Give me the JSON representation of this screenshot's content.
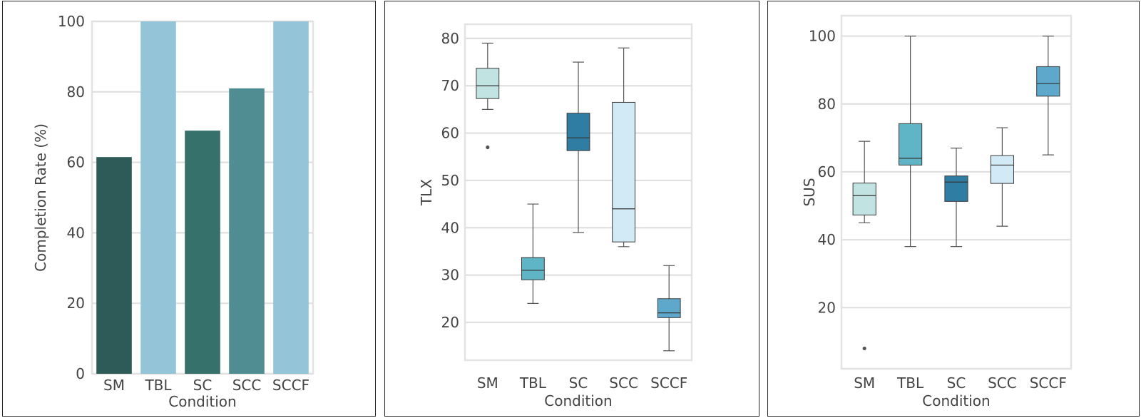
{
  "chart_data": [
    {
      "type": "bar",
      "xlabel": "Condition",
      "ylabel": "Completion Rate (%)",
      "ylim": [
        0,
        100
      ],
      "yticks": [
        0,
        20,
        40,
        60,
        80,
        100
      ],
      "grid": true,
      "categories": [
        "SM",
        "TBL",
        "SC",
        "SCC",
        "SCCF"
      ],
      "values": [
        61.5,
        100,
        69,
        81,
        100
      ],
      "colors": [
        "#2e5b57",
        "#93c4d8",
        "#37716c",
        "#4f8d92",
        "#93c4d8"
      ]
    },
    {
      "type": "box",
      "xlabel": "Condition",
      "ylabel": "TLX",
      "ylim": [
        12,
        83
      ],
      "yticks": [
        20,
        30,
        40,
        50,
        60,
        70,
        80
      ],
      "grid": true,
      "categories": [
        "SM",
        "TBL",
        "SC",
        "SCC",
        "SCCF"
      ],
      "boxes": [
        {
          "whislo": 65,
          "q1": 67.3,
          "med": 70,
          "q3": 73.7,
          "whishi": 79,
          "fliers": [
            57
          ],
          "color": "#c1e4e3"
        },
        {
          "whislo": 24,
          "q1": 29,
          "med": 31,
          "q3": 33.7,
          "whishi": 45,
          "fliers": [],
          "color": "#5fb4c6"
        },
        {
          "whislo": 39,
          "q1": 56.3,
          "med": 59,
          "q3": 64.2,
          "whishi": 75,
          "fliers": [],
          "color": "#2f7da3"
        },
        {
          "whislo": 36,
          "q1": 37,
          "med": 44,
          "q3": 66.5,
          "whishi": 78,
          "fliers": [],
          "color": "#d2eaf5"
        },
        {
          "whislo": 14,
          "q1": 21,
          "med": 22,
          "q3": 25,
          "whishi": 32,
          "fliers": [],
          "color": "#5ea8cc"
        }
      ]
    },
    {
      "type": "box",
      "xlabel": "Condition",
      "ylabel": "SUS",
      "ylim": [
        2,
        106
      ],
      "yticks": [
        20,
        40,
        60,
        80,
        100
      ],
      "grid": true,
      "categories": [
        "SM",
        "TBL",
        "SC",
        "SCC",
        "SCCF"
      ],
      "boxes": [
        {
          "whislo": 45,
          "q1": 47.3,
          "med": 53,
          "q3": 56.7,
          "whishi": 69,
          "fliers": [
            8
          ],
          "color": "#c1e4e3"
        },
        {
          "whislo": 38,
          "q1": 62,
          "med": 64,
          "q3": 74.2,
          "whishi": 100,
          "fliers": [],
          "color": "#5fb4c6"
        },
        {
          "whislo": 38,
          "q1": 51.3,
          "med": 57,
          "q3": 58.8,
          "whishi": 67,
          "fliers": [],
          "color": "#2f7da3"
        },
        {
          "whislo": 44,
          "q1": 56.6,
          "med": 62,
          "q3": 64.8,
          "whishi": 73,
          "fliers": [],
          "color": "#d2eaf5"
        },
        {
          "whislo": 65,
          "q1": 82.3,
          "med": 86,
          "q3": 91,
          "whishi": 100,
          "fliers": [],
          "color": "#5ea8cc"
        }
      ]
    }
  ]
}
